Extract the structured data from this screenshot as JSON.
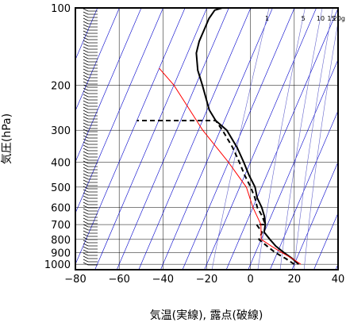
{
  "chart_data": {
    "type": "line",
    "title": "",
    "xlabel": "気温(実線), 露点(破線)",
    "ylabel": "気圧(hPa)",
    "xlim": [
      -80,
      40
    ],
    "ylim": [
      1050,
      100
    ],
    "y_scale": "log",
    "grid": true,
    "x_ticks": [
      -80,
      -60,
      -40,
      -20,
      0,
      20,
      40
    ],
    "x_tick_labels": [
      "−80",
      "−60",
      "−40",
      "−20",
      "0",
      "20",
      "40"
    ],
    "y_ticks": [
      100,
      200,
      300,
      400,
      500,
      600,
      700,
      800,
      900,
      1000
    ],
    "y_tick_labels": [
      "100",
      "200",
      "300",
      "400",
      "500",
      "600",
      "700",
      "800",
      "900",
      "1000"
    ],
    "mixing_ratio_labels": [
      "1",
      "5",
      "10",
      "15",
      "20g"
    ],
    "mixing_ratio_values": [
      1,
      5,
      10,
      15,
      20
    ],
    "series": [
      {
        "role": "temperature",
        "style": "solid",
        "color": "#000000",
        "points": [
          [
            22,
            1000
          ],
          [
            18,
            950
          ],
          [
            13,
            900
          ],
          [
            8,
            850
          ],
          [
            4,
            800
          ],
          [
            0,
            750
          ],
          [
            -1,
            700
          ],
          [
            -3,
            650
          ],
          [
            -6,
            600
          ],
          [
            -10,
            550
          ],
          [
            -13,
            500
          ],
          [
            -18,
            450
          ],
          [
            -23,
            400
          ],
          [
            -29,
            350
          ],
          [
            -37,
            300
          ],
          [
            -44,
            275
          ],
          [
            -49,
            250
          ],
          [
            -57,
            200
          ],
          [
            -62,
            175
          ],
          [
            -66,
            150
          ],
          [
            -67,
            135
          ],
          [
            -67,
            120
          ],
          [
            -67,
            110
          ],
          [
            -66,
            102
          ],
          [
            -63,
            100
          ]
        ]
      },
      {
        "role": "dewpoint",
        "style": "dashed",
        "color": "#000000",
        "points": [
          [
            20,
            1000
          ],
          [
            15,
            950
          ],
          [
            9,
            900
          ],
          [
            4,
            850
          ],
          [
            -1,
            800
          ],
          [
            -1,
            750
          ],
          [
            -5,
            700
          ],
          [
            -1,
            700
          ],
          [
            -4,
            650
          ],
          [
            -8,
            600
          ],
          [
            -11,
            550
          ],
          [
            -15,
            500
          ],
          [
            -20,
            450
          ],
          [
            -25,
            400
          ],
          [
            -31,
            350
          ],
          [
            -39,
            300
          ],
          [
            -44,
            275
          ],
          [
            -80,
            275
          ]
        ]
      },
      {
        "role": "reference-curve",
        "style": "solid",
        "color": "#ff0000",
        "points": [
          [
            23,
            1000
          ],
          [
            18,
            950
          ],
          [
            12,
            900
          ],
          [
            6,
            850
          ],
          [
            0,
            800
          ],
          [
            -3,
            700
          ],
          [
            -10,
            600
          ],
          [
            -17,
            500
          ],
          [
            -30,
            400
          ],
          [
            -48,
            300
          ],
          [
            -70,
            200
          ],
          [
            -80,
            172
          ]
        ]
      }
    ]
  },
  "colors": {
    "temperature": "#000000",
    "dewpoint": "#000000",
    "reference_curve": "#ff0000",
    "isotherms": "#0000cc",
    "mixing_ratio": "#6666cc",
    "grid": "#000000",
    "wind_barbs": "#000000"
  }
}
